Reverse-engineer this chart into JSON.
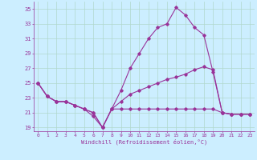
{
  "xlabel": "Windchill (Refroidissement éolien,°C)",
  "background_color": "#cceeff",
  "grid_color": "#b0d8cc",
  "line_color": "#993399",
  "xlim": [
    -0.5,
    23.5
  ],
  "ylim": [
    18.5,
    36.0
  ],
  "yticks": [
    19,
    21,
    23,
    25,
    27,
    29,
    31,
    33,
    35
  ],
  "xticks": [
    0,
    1,
    2,
    3,
    4,
    5,
    6,
    7,
    8,
    9,
    10,
    11,
    12,
    13,
    14,
    15,
    16,
    17,
    18,
    19,
    20,
    21,
    22,
    23
  ],
  "series": [
    [
      25.0,
      23.2,
      22.5,
      22.5,
      22.0,
      21.5,
      20.5,
      19.0,
      21.5,
      24.0,
      27.0,
      29.0,
      31.0,
      32.5,
      33.0,
      35.2,
      34.2,
      32.5,
      31.5,
      26.5,
      21.0,
      20.8,
      20.8,
      20.8
    ],
    [
      25.0,
      23.2,
      22.5,
      22.5,
      22.0,
      21.5,
      21.0,
      19.0,
      21.5,
      22.5,
      23.5,
      24.0,
      24.5,
      25.0,
      25.5,
      25.8,
      26.2,
      26.8,
      27.2,
      26.8,
      21.0,
      20.8,
      20.8,
      20.8
    ],
    [
      25.0,
      23.2,
      22.5,
      22.5,
      22.0,
      21.5,
      21.0,
      19.0,
      21.5,
      21.5,
      21.5,
      21.5,
      21.5,
      21.5,
      21.5,
      21.5,
      21.5,
      21.5,
      21.5,
      21.5,
      21.0,
      20.8,
      20.8,
      20.8
    ]
  ]
}
